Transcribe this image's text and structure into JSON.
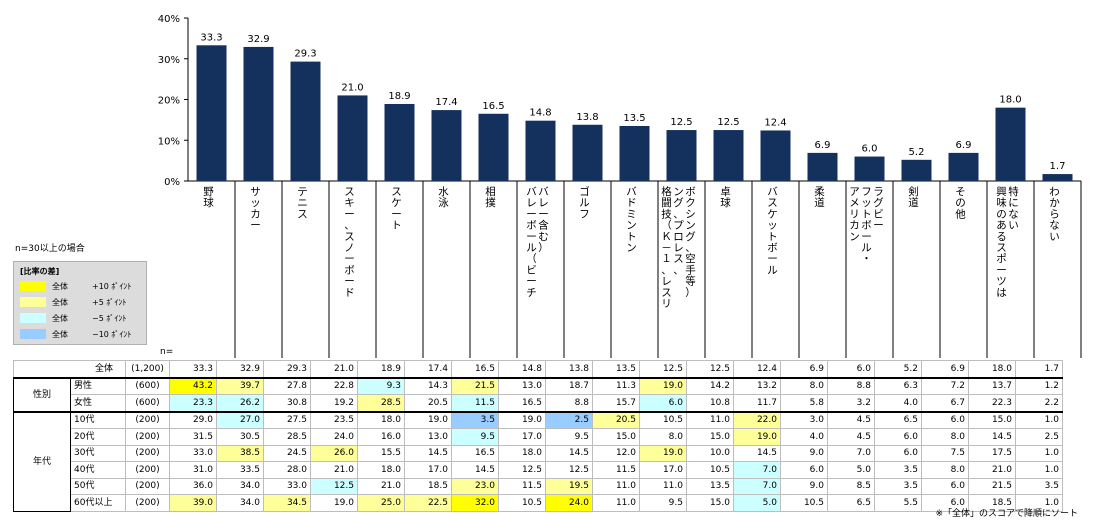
{
  "chart_data": {
    "type": "bar",
    "categories": [
      "野球",
      "サッカー",
      "テニス",
      "スキー、スノーボード",
      "スケート",
      "水泳",
      "相撲",
      "バレーボール（ビーチバレー含む）",
      "ゴルフ",
      "バドミントン",
      "格闘技（Ｋ－１、レスリング、プロレス、ボクシング、空手等）",
      "卓球",
      "バスケットボール",
      "柔道",
      "アメリカンフットボール・ラグビー",
      "剣道",
      "その他",
      "興味のあるスポーツは特にない",
      "わからない"
    ],
    "categories_display": [
      "野球",
      "サッカー",
      "テニス",
      "スキー、スノーボード",
      "スケート",
      "水泳",
      "相撲",
      "バレーボール（ビーチ\nバレー含む）",
      "ゴルフ",
      "バドミントン",
      "格闘技（Ｋ－１、レスリ\nング、プロレス、\nボクシング、空手等）",
      "卓球",
      "バスケットボール",
      "柔道",
      "アメリカン\nフットボール・\nラグビー",
      "剣道",
      "その他",
      "興味のあるスポーツは\n特にない",
      "わからない"
    ],
    "values": [
      33.3,
      32.9,
      29.3,
      21.0,
      18.9,
      17.4,
      16.5,
      14.8,
      13.8,
      13.5,
      12.5,
      12.5,
      12.4,
      6.9,
      6.0,
      5.2,
      6.9,
      18.0,
      1.7
    ],
    "value_labels": [
      "33.3",
      "32.9",
      "29.3",
      "21.0",
      "18.9",
      "17.4",
      "16.5",
      "14.8",
      "13.8",
      "13.5",
      "12.5",
      "12.5",
      "12.4",
      "6.9",
      "6.0",
      "5.2",
      "6.9",
      "18.0",
      "1.7"
    ],
    "yticks": [
      "0%",
      "10%",
      "20%",
      "30%",
      "40%"
    ],
    "ylim": [
      0,
      40
    ],
    "bar_color": "#13315c",
    "grid": false,
    "table": {
      "rows": [
        {
          "group": "",
          "label": "全体",
          "n": "(1,200)",
          "values": [
            "33.3",
            "32.9",
            "29.3",
            "21.0",
            "18.9",
            "17.4",
            "16.5",
            "14.8",
            "13.8",
            "13.5",
            "12.5",
            "12.5",
            "12.4",
            "6.9",
            "6.0",
            "5.2",
            "6.9",
            "18.0",
            "1.7"
          ],
          "diff": [
            0,
            0,
            0,
            0,
            0,
            0,
            0,
            0,
            0,
            0,
            0,
            0,
            0,
            0,
            0,
            0,
            0,
            0,
            0
          ]
        },
        {
          "group": "性別",
          "label": "男性",
          "n": "(600)",
          "values": [
            "43.2",
            "39.7",
            "27.8",
            "22.8",
            "9.3",
            "14.3",
            "21.5",
            "13.0",
            "18.7",
            "11.3",
            "19.0",
            "14.2",
            "13.2",
            "8.0",
            "8.8",
            "6.3",
            "7.2",
            "13.7",
            "1.2"
          ],
          "diff": [
            10,
            5,
            0,
            0,
            -5,
            0,
            5,
            0,
            0,
            0,
            5,
            0,
            0,
            0,
            0,
            0,
            0,
            0,
            0
          ]
        },
        {
          "group": "",
          "label": "女性",
          "n": "(600)",
          "values": [
            "23.3",
            "26.2",
            "30.8",
            "19.2",
            "28.5",
            "20.5",
            "11.5",
            "16.5",
            "8.8",
            "15.7",
            "6.0",
            "10.8",
            "11.7",
            "5.8",
            "3.2",
            "4.0",
            "6.7",
            "22.3",
            "2.2"
          ],
          "diff": [
            -5,
            -5,
            0,
            0,
            5,
            0,
            -5,
            0,
            0,
            0,
            -5,
            0,
            0,
            0,
            0,
            0,
            0,
            0,
            0
          ]
        },
        {
          "group": "年代",
          "label": "10代",
          "n": "(200)",
          "values": [
            "29.0",
            "27.0",
            "27.5",
            "23.5",
            "18.0",
            "19.0",
            "3.5",
            "19.0",
            "2.5",
            "20.5",
            "10.5",
            "11.0",
            "22.0",
            "3.0",
            "4.5",
            "6.5",
            "6.0",
            "15.0",
            "1.0"
          ],
          "diff": [
            0,
            -5,
            0,
            0,
            0,
            0,
            -10,
            0,
            -10,
            5,
            0,
            0,
            5,
            0,
            0,
            0,
            0,
            0,
            0
          ]
        },
        {
          "group": "",
          "label": "20代",
          "n": "(200)",
          "values": [
            "31.5",
            "30.5",
            "28.5",
            "24.0",
            "16.0",
            "13.0",
            "9.5",
            "17.0",
            "9.5",
            "15.0",
            "8.0",
            "15.0",
            "19.0",
            "4.0",
            "4.5",
            "6.0",
            "8.0",
            "14.5",
            "2.5"
          ],
          "diff": [
            0,
            0,
            0,
            0,
            0,
            0,
            -5,
            0,
            0,
            0,
            0,
            0,
            5,
            0,
            0,
            0,
            0,
            0,
            0
          ]
        },
        {
          "group": "",
          "label": "30代",
          "n": "(200)",
          "values": [
            "33.0",
            "38.5",
            "24.5",
            "26.0",
            "15.5",
            "14.5",
            "16.5",
            "18.0",
            "14.5",
            "12.0",
            "19.0",
            "10.0",
            "14.5",
            "9.0",
            "7.0",
            "6.0",
            "7.5",
            "17.5",
            "1.0"
          ],
          "diff": [
            0,
            5,
            0,
            5,
            0,
            0,
            0,
            0,
            0,
            0,
            5,
            0,
            0,
            0,
            0,
            0,
            0,
            0,
            0
          ]
        },
        {
          "group": "",
          "label": "40代",
          "n": "(200)",
          "values": [
            "31.0",
            "33.5",
            "28.0",
            "21.0",
            "18.0",
            "17.0",
            "14.5",
            "12.5",
            "12.5",
            "11.5",
            "17.0",
            "10.5",
            "7.0",
            "6.0",
            "5.0",
            "3.5",
            "8.0",
            "21.0",
            "1.0"
          ],
          "diff": [
            0,
            0,
            0,
            0,
            0,
            0,
            0,
            0,
            0,
            0,
            0,
            0,
            -5,
            0,
            0,
            0,
            0,
            0,
            0
          ]
        },
        {
          "group": "",
          "label": "50代",
          "n": "(200)",
          "values": [
            "36.0",
            "34.0",
            "33.0",
            "12.5",
            "21.0",
            "18.5",
            "23.0",
            "11.5",
            "19.5",
            "11.0",
            "11.0",
            "13.5",
            "7.0",
            "9.0",
            "8.5",
            "3.5",
            "6.0",
            "21.5",
            "3.5"
          ],
          "diff": [
            0,
            0,
            0,
            -5,
            0,
            0,
            5,
            0,
            5,
            0,
            0,
            0,
            -5,
            0,
            0,
            0,
            0,
            0,
            0
          ]
        },
        {
          "group": "",
          "label": "60代以上",
          "n": "(200)",
          "values": [
            "39.0",
            "34.0",
            "34.5",
            "19.0",
            "25.0",
            "22.5",
            "32.0",
            "10.5",
            "24.0",
            "11.0",
            "9.5",
            "15.0",
            "5.0",
            "10.5",
            "6.5",
            "5.5",
            "6.0",
            "18.5",
            "1.0"
          ],
          "diff": [
            5,
            0,
            5,
            0,
            5,
            5,
            10,
            0,
            10,
            0,
            0,
            0,
            -5,
            0,
            0,
            0,
            0,
            0,
            0
          ]
        }
      ]
    }
  },
  "labels": {
    "n_header": "n=",
    "sample_note": "n=30以上の場合",
    "footnote": "※「全体」のスコアで降順にソート"
  },
  "legend": {
    "title": "[比率の差]",
    "items": [
      {
        "label": "全体",
        "diff": "+10 ﾎﾟｲﾝﾄ",
        "color": "#ffff00"
      },
      {
        "label": "全体",
        "diff": "+5 ﾎﾟｲﾝﾄ",
        "color": "#ffff99"
      },
      {
        "label": "全体",
        "diff": "−5 ﾎﾟｲﾝﾄ",
        "color": "#ccffff"
      },
      {
        "label": "全体",
        "diff": "−10 ﾎﾟｲﾝﾄ",
        "color": "#99ccff"
      }
    ]
  },
  "colors": {
    "plus10": "#ffff00",
    "plus5": "#ffff99",
    "minus5": "#ccffff",
    "minus10": "#99ccff"
  }
}
